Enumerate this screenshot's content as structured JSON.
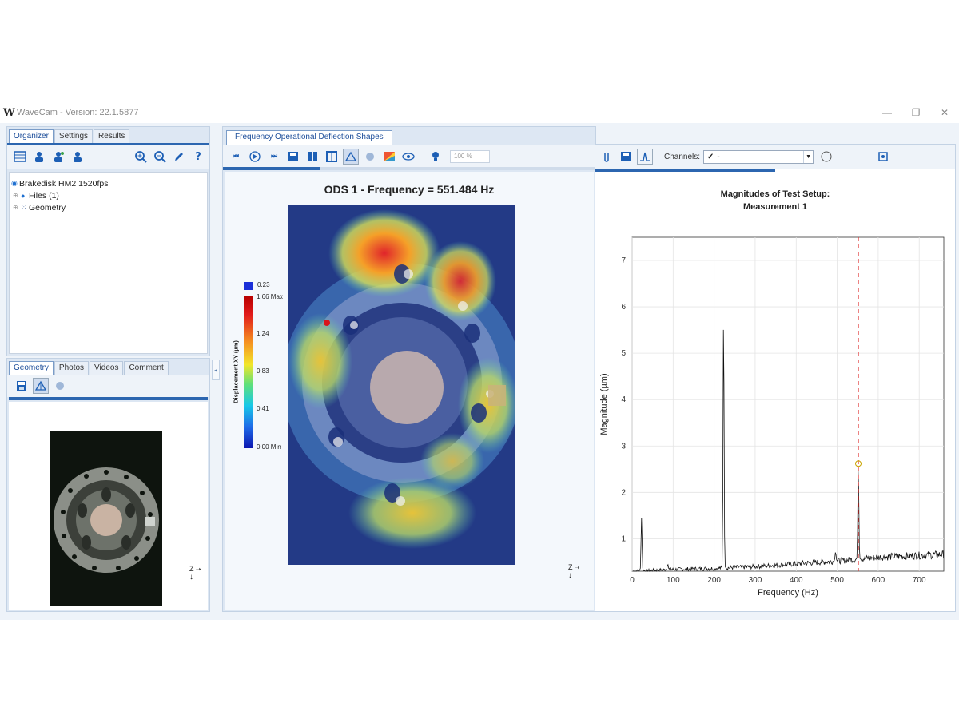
{
  "window": {
    "logo_text": "W",
    "title": "WaveCam - Version: 22.1.5877",
    "minimize": "—",
    "maximize": "❐",
    "close": "✕"
  },
  "organizer": {
    "tabs": [
      {
        "label": "Organizer",
        "active": true
      },
      {
        "label": "Settings",
        "active": false
      },
      {
        "label": "Results",
        "active": false
      }
    ],
    "tree": [
      {
        "label": "Brakedisk HM2 1520fps",
        "level": 0
      },
      {
        "label": "Files (1)",
        "level": 1
      },
      {
        "label": "Geometry",
        "level": 1
      }
    ]
  },
  "lower_panel": {
    "tabs": [
      {
        "label": "Geometry",
        "active": true
      },
      {
        "label": "Photos",
        "active": false
      },
      {
        "label": "Videos",
        "active": false
      },
      {
        "label": "Comment",
        "active": false
      }
    ],
    "axis_label": "Z"
  },
  "ods_panel": {
    "tab_label": "Frequency Operational Deflection Shapes",
    "zoom_value": "100 %",
    "playback_progress": 0.26,
    "title": "ODS 1 - Frequency = 551.484 Hz",
    "colorbar": {
      "top_value": "0.23",
      "label": "Displacement XY (µm)",
      "ticks": [
        "1.66 Max",
        "1.24",
        "0.83",
        "0.41",
        "0.00 Min"
      ]
    },
    "axis_label": "Z"
  },
  "spectrum_panel": {
    "channels_label": "Channels:",
    "channels_value": "-",
    "progress": 0.5
  },
  "chart_data": {
    "type": "line",
    "title": "Magnitudes of Test Setup:",
    "subtitle": "Measurement 1",
    "xlabel": "Frequency (Hz)",
    "ylabel": "Magnitude (µm)",
    "xlim": [
      0,
      760
    ],
    "ylim": [
      0.3,
      7.5
    ],
    "xticks": [
      0,
      100,
      200,
      300,
      400,
      500,
      600,
      700
    ],
    "yticks": [
      1,
      2,
      3,
      4,
      5,
      6,
      7
    ],
    "grid": true,
    "marker_frequency": 551.484,
    "marker_color": "#e03030",
    "series_color": "#111111",
    "baseline": [
      [
        0,
        0.3
      ],
      [
        100,
        0.34
      ],
      [
        200,
        0.36
      ],
      [
        300,
        0.4
      ],
      [
        400,
        0.46
      ],
      [
        500,
        0.52
      ],
      [
        600,
        0.6
      ],
      [
        700,
        0.64
      ],
      [
        760,
        0.66
      ]
    ],
    "peaks": [
      {
        "x": 23,
        "y": 1.45
      },
      {
        "x": 87,
        "y": 0.45
      },
      {
        "x": 223,
        "y": 5.95
      },
      {
        "x": 496,
        "y": 0.72
      },
      {
        "x": 551.5,
        "y": 2.62
      }
    ]
  }
}
